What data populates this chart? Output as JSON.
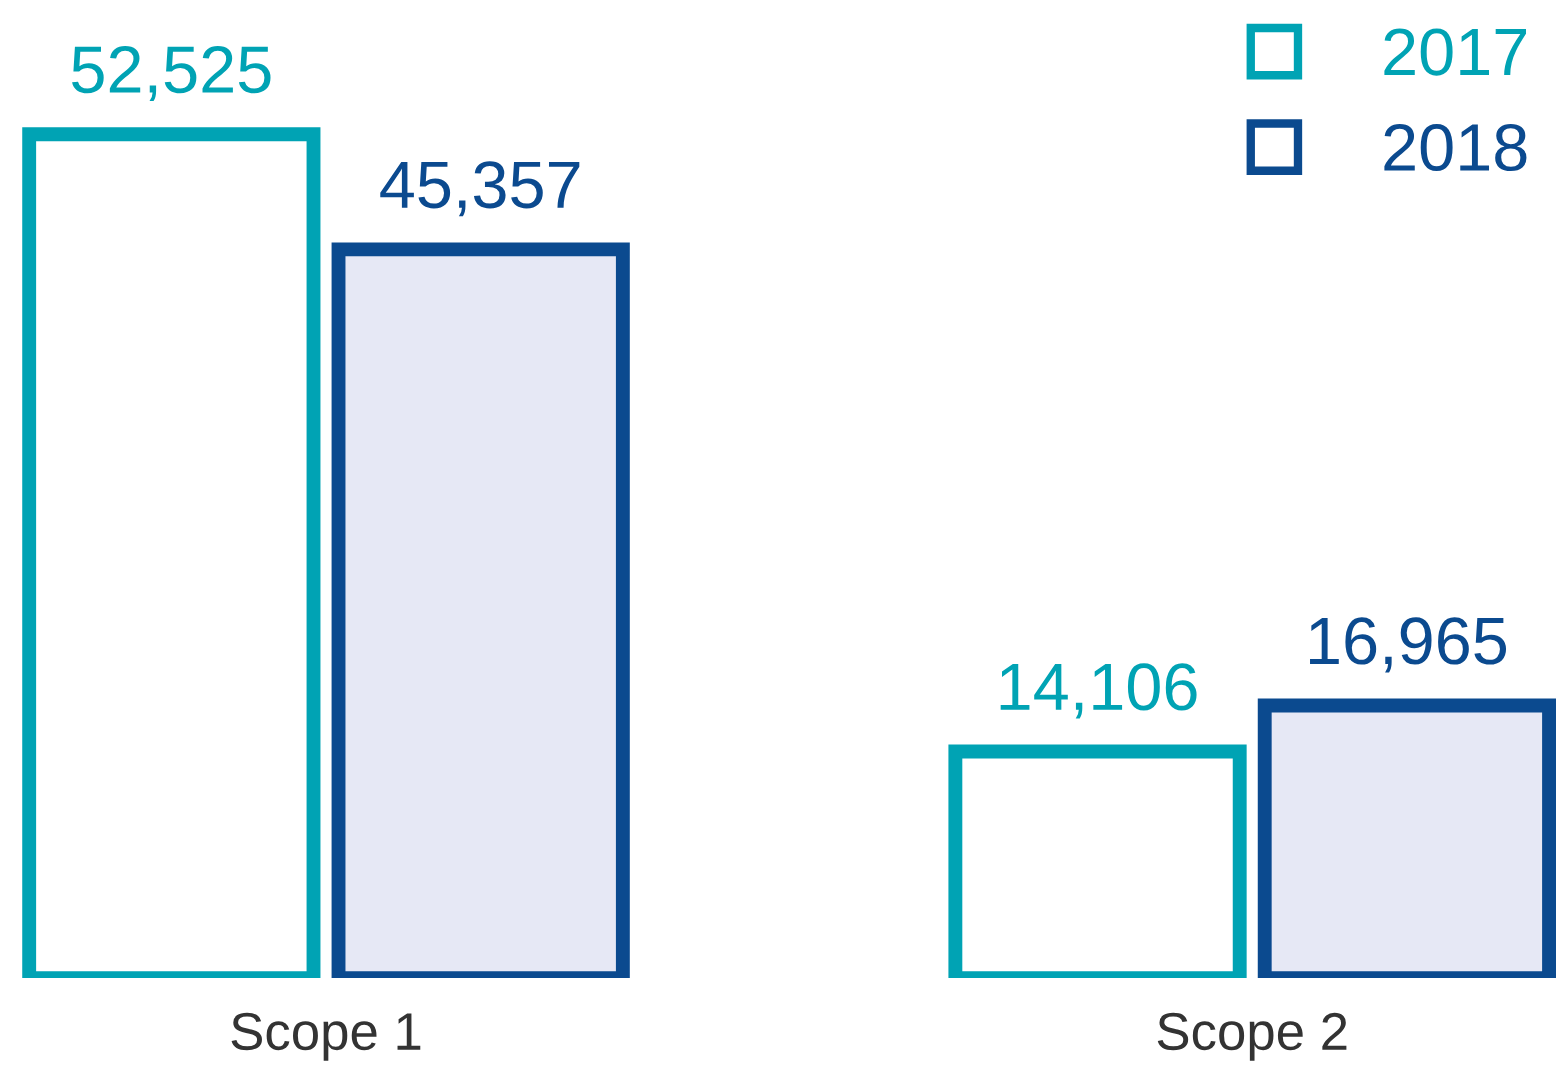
{
  "chart_data": {
    "type": "bar",
    "categories": [
      "Scope 1",
      "Scope 2"
    ],
    "series": [
      {
        "name": "2017",
        "color": "#00a3b4",
        "values": [
          52525,
          14106
        ],
        "value_labels": [
          "52,525",
          "14,106"
        ]
      },
      {
        "name": "2018",
        "color": "#0b4a8f",
        "values": [
          45357,
          16965
        ],
        "value_labels": [
          "45,357",
          "16,965"
        ]
      }
    ],
    "legend": "top right",
    "grid": false
  }
}
